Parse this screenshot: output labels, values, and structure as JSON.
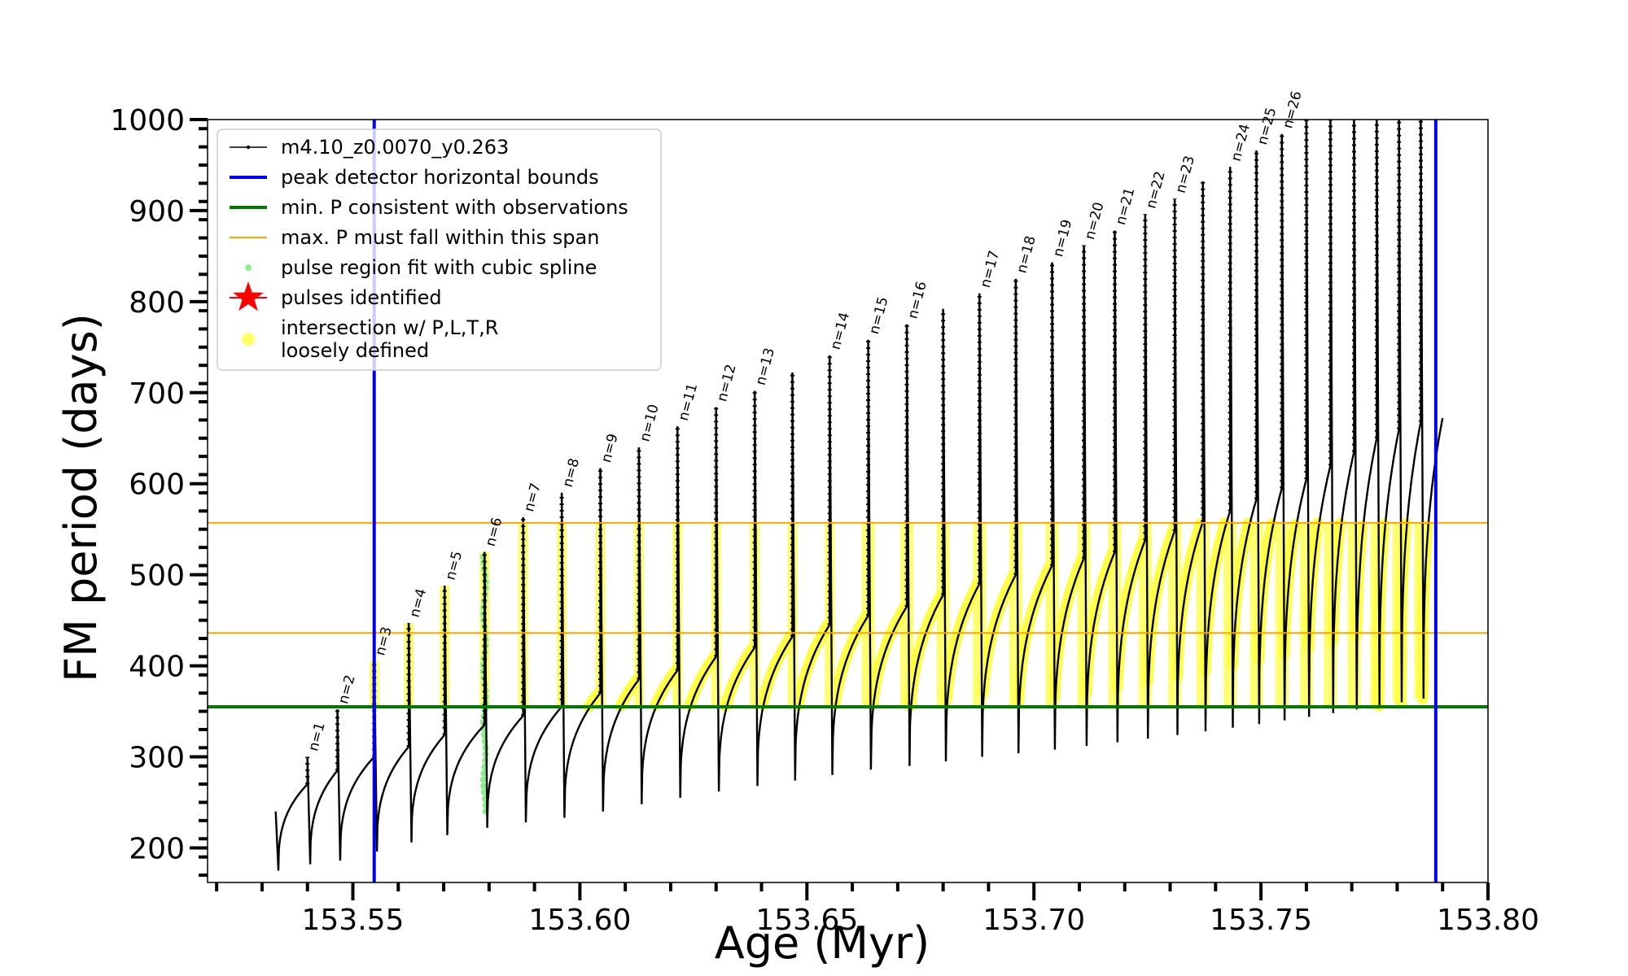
{
  "chart_data": {
    "type": "line",
    "xlabel": "Age (Myr)",
    "ylabel": "FM period (days)",
    "xlim": [
      153.518,
      153.8
    ],
    "ylim": [
      162,
      1000
    ],
    "x_ticks": [
      153.55,
      153.6,
      153.65,
      153.7,
      153.75,
      153.8
    ],
    "x_tick_labels": [
      "153.55",
      "153.60",
      "153.65",
      "153.70",
      "153.75",
      "153.80"
    ],
    "y_ticks": [
      200,
      300,
      400,
      500,
      600,
      700,
      800,
      900,
      1000
    ],
    "y_tick_labels": [
      "200",
      "300",
      "400",
      "500",
      "600",
      "700",
      "800",
      "900",
      "1000"
    ],
    "legend": {
      "placement": "top-left",
      "entries": [
        {
          "label": "m4.10_z0.0070_y0.263",
          "kind": "line-marker",
          "color": "#000000"
        },
        {
          "label": "peak detector horizontal bounds",
          "kind": "line",
          "color": "#0000ee"
        },
        {
          "label": "min. P consistent with observations",
          "kind": "line",
          "color": "#007a00"
        },
        {
          "label": "max. P must fall within this span",
          "kind": "thin-line",
          "color": "#ffa500"
        },
        {
          "label": "pulse region fit with cubic spline",
          "kind": "dot",
          "color": "#90ee90"
        },
        {
          "label": "pulses identified",
          "kind": "star",
          "color": "#ff0000"
        },
        {
          "label": "intersection w/ P,L,T,R",
          "label2": "loosely defined",
          "kind": "bigdot",
          "color": "#ffff66"
        }
      ]
    },
    "vertical_lines": [
      {
        "x": 153.5547,
        "color": "#0000ee"
      },
      {
        "x": 153.7885,
        "color": "#0000ee"
      }
    ],
    "horizontal_lines": [
      {
        "y": 355,
        "color": "#007a00"
      },
      {
        "y": 436,
        "color": "#ffa500"
      },
      {
        "y": 557,
        "color": "#ffa500"
      }
    ],
    "pulses": [
      {
        "n": "n=1",
        "x": 153.54,
        "peak": 300,
        "min": 182,
        "end": 270
      },
      {
        "n": "n=2",
        "x": 153.5466,
        "peak": 352,
        "min": 186,
        "end": 285
      },
      {
        "n": "n=3",
        "x": 153.5547,
        "peak": 405,
        "min": 196,
        "end": 300
      },
      {
        "n": "n=4",
        "x": 153.5623,
        "peak": 447,
        "min": 206,
        "end": 311
      },
      {
        "n": "n=5",
        "x": 153.5702,
        "peak": 488,
        "min": 214,
        "end": 324
      },
      {
        "n": "n=6",
        "x": 153.579,
        "peak": 525,
        "min": 222,
        "end": 335
      },
      {
        "n": "n=7",
        "x": 153.5875,
        "peak": 563,
        "min": 228,
        "end": 345
      },
      {
        "n": "n=8",
        "x": 153.596,
        "peak": 590,
        "min": 233,
        "end": 355
      },
      {
        "n": "n=9",
        "x": 153.6045,
        "peak": 617,
        "min": 240,
        "end": 370
      },
      {
        "n": "n=10",
        "x": 153.613,
        "peak": 640,
        "min": 248,
        "end": 385
      },
      {
        "n": "n=11",
        "x": 153.6215,
        "peak": 663,
        "min": 255,
        "end": 395
      },
      {
        "n": "n=12",
        "x": 153.63,
        "peak": 684,
        "min": 262,
        "end": 410
      },
      {
        "n": "n=13",
        "x": 153.6385,
        "peak": 702,
        "min": 268,
        "end": 420
      },
      {
        "n": "",
        "x": 153.6468,
        "peak": 722,
        "min": 274,
        "end": 432
      },
      {
        "n": "n=14",
        "x": 153.655,
        "peak": 741,
        "min": 280,
        "end": 445
      },
      {
        "n": "n=15",
        "x": 153.6635,
        "peak": 758,
        "min": 286,
        "end": 455
      },
      {
        "n": "n=16",
        "x": 153.672,
        "peak": 775,
        "min": 290,
        "end": 465
      },
      {
        "n": "",
        "x": 153.68,
        "peak": 792,
        "min": 295,
        "end": 478
      },
      {
        "n": "n=17",
        "x": 153.688,
        "peak": 809,
        "min": 300,
        "end": 490
      },
      {
        "n": "n=18",
        "x": 153.696,
        "peak": 825,
        "min": 304,
        "end": 500
      },
      {
        "n": "n=19",
        "x": 153.704,
        "peak": 843,
        "min": 308,
        "end": 510
      },
      {
        "n": "n=20",
        "x": 153.711,
        "peak": 862,
        "min": 312,
        "end": 518
      },
      {
        "n": "n=21",
        "x": 153.7178,
        "peak": 878,
        "min": 316,
        "end": 525
      },
      {
        "n": "n=22",
        "x": 153.7245,
        "peak": 896,
        "min": 320,
        "end": 538
      },
      {
        "n": "n=23",
        "x": 153.731,
        "peak": 913,
        "min": 324,
        "end": 548
      },
      {
        "n": "",
        "x": 153.7372,
        "peak": 932,
        "min": 328,
        "end": 558
      },
      {
        "n": "n=24",
        "x": 153.7432,
        "peak": 948,
        "min": 332,
        "end": 570
      },
      {
        "n": "n=25",
        "x": 153.749,
        "peak": 966,
        "min": 336,
        "end": 583
      },
      {
        "n": "n=26",
        "x": 153.7546,
        "peak": 984,
        "min": 340,
        "end": 595
      },
      {
        "n": "",
        "x": 153.76,
        "peak": 1000,
        "min": 344,
        "end": 605
      },
      {
        "n": "",
        "x": 153.7653,
        "peak": 1000,
        "min": 348,
        "end": 620
      },
      {
        "n": "",
        "x": 153.7705,
        "peak": 1000,
        "min": 352,
        "end": 635
      },
      {
        "n": "",
        "x": 153.7755,
        "peak": 1000,
        "min": 356,
        "end": 650
      },
      {
        "n": "",
        "x": 153.7804,
        "peak": 1000,
        "min": 360,
        "end": 660
      },
      {
        "n": "",
        "x": 153.7852,
        "peak": 1000,
        "min": 364,
        "end": 668
      }
    ],
    "first_segment": {
      "x": 153.533,
      "start": 240,
      "min": 175
    },
    "last_segment": {
      "x_end": 153.79,
      "end": 672
    }
  }
}
